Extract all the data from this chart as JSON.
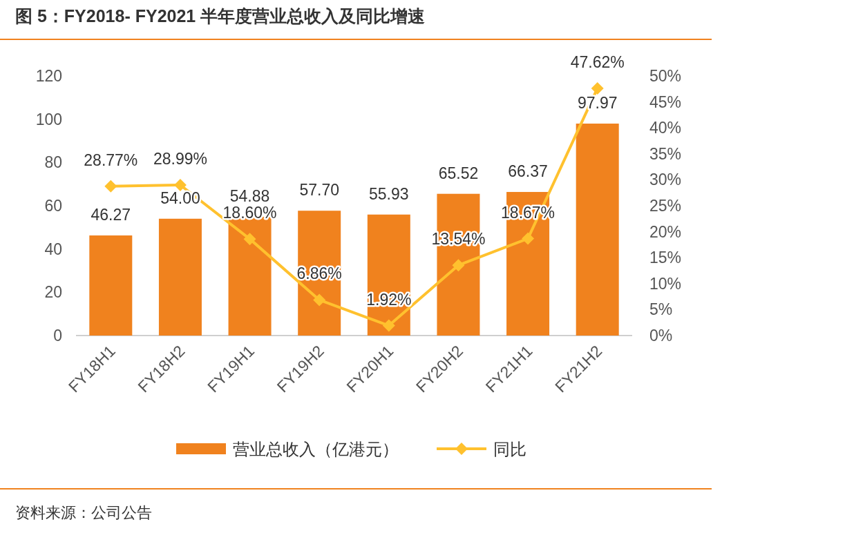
{
  "chart_data": {
    "type": "bar",
    "title": "图 5：FY2018- FY2021 半年度营业总收入及同比增速",
    "categories": [
      "FY18H1",
      "FY18H2",
      "FY19H1",
      "FY19H2",
      "FY20H1",
      "FY20H2",
      "FY21H1",
      "FY21H2"
    ],
    "series": [
      {
        "name": "营业总收入（亿港元）",
        "color": "#F0821E",
        "values": [
          46.27,
          54.0,
          54.88,
          57.7,
          55.93,
          65.52,
          66.37,
          97.97
        ],
        "value_labels": [
          "46.27",
          "54.00",
          "54.88",
          "57.70",
          "55.93",
          "65.52",
          "66.37",
          "97.97"
        ]
      },
      {
        "name": "同比",
        "type": "line",
        "axis": "y2",
        "color": "#FFC12E",
        "marker": "diamond",
        "values": [
          28.77,
          28.99,
          18.6,
          6.86,
          1.92,
          13.54,
          18.67,
          47.62
        ],
        "value_labels": [
          "28.77%",
          "28.99%",
          "18.60%",
          "6.86%",
          "1.92%",
          "13.54%",
          "18.67%",
          "47.62%"
        ]
      }
    ],
    "ylim": [
      0,
      120
    ],
    "yticks": [
      0,
      20,
      40,
      60,
      80,
      100,
      120
    ],
    "y2lim": [
      0,
      50
    ],
    "y2ticks": [
      {
        "value": 0,
        "label": "0%"
      },
      {
        "value": 5,
        "label": "5%"
      },
      {
        "value": 10,
        "label": "10%"
      },
      {
        "value": 15,
        "label": "15%"
      },
      {
        "value": 20,
        "label": "20%"
      },
      {
        "value": 25,
        "label": "25%"
      },
      {
        "value": 30,
        "label": "30%"
      },
      {
        "value": 35,
        "label": "35%"
      },
      {
        "value": 40,
        "label": "40%"
      },
      {
        "value": 45,
        "label": "45%"
      },
      {
        "value": 50,
        "label": "50%"
      }
    ],
    "legend": "bottom",
    "grid": false,
    "annotations": [
      "资料来源：公司公告"
    ]
  }
}
